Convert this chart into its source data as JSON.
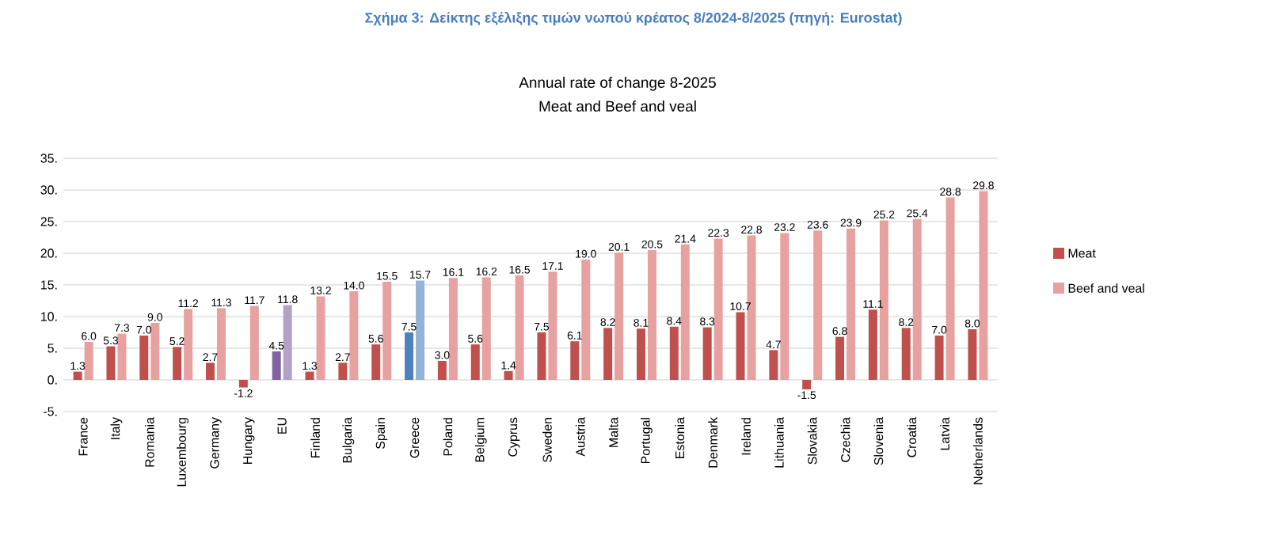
{
  "chart_data": {
    "type": "bar",
    "title": "Σχήμα 3: Δείκτης εξέλιξης τιμών νωπού κρέατος 8/2024-8/2025 (πηγή: Eurostat)",
    "subtitle": "Annual rate of change 8-2025",
    "annotations": [
      "Meat and Beef and veal"
    ],
    "categories": [
      "France",
      "Italy",
      "Romania",
      "Luxembourg",
      "Germany",
      "Hungary",
      "EU",
      "Finland",
      "Bulgaria",
      "Spain",
      "Greece",
      "Poland",
      "Belgium",
      "Cyprus",
      "Sweden",
      "Austria",
      "Malta",
      "Portugal",
      "Estonia",
      "Denmark",
      "Ireland",
      "Lithuania",
      "Slovakia",
      "Czechia",
      "Slovenia",
      "Croatia",
      "Latvia",
      "Netherlands"
    ],
    "series": [
      {
        "name": "Meat",
        "color": "#c0504d",
        "values": [
          1.3,
          5.3,
          7.0,
          5.2,
          2.7,
          -1.2,
          4.5,
          1.3,
          2.7,
          5.6,
          7.5,
          3.0,
          5.6,
          1.4,
          7.5,
          6.1,
          8.2,
          8.1,
          8.4,
          8.3,
          10.7,
          4.7,
          -1.5,
          6.8,
          11.1,
          8.2,
          7.0,
          8.0
        ],
        "colors": [
          "#c0504d",
          "#c0504d",
          "#c0504d",
          "#c0504d",
          "#c0504d",
          "#c0504d",
          "#8064a2",
          "#c0504d",
          "#c0504d",
          "#c0504d",
          "#4f81bd",
          "#c0504d",
          "#c0504d",
          "#c0504d",
          "#c0504d",
          "#c0504d",
          "#c0504d",
          "#c0504d",
          "#c0504d",
          "#c0504d",
          "#c0504d",
          "#c0504d",
          "#c0504d",
          "#c0504d",
          "#c0504d",
          "#c0504d",
          "#c0504d",
          "#c0504d"
        ],
        "value_labels": [
          "1.3",
          "5.3",
          "7.0",
          "5.2",
          "2.7",
          "-1.2",
          "4.5",
          "1.3",
          "2.7",
          "5.6",
          "7.5",
          "3.0",
          "5.6",
          "1.4",
          "7.5",
          "6.1",
          "8.2",
          "8.1",
          "8.4",
          "8.3",
          "10.7",
          "4.7",
          "-1.5",
          "6.8",
          "11.1",
          "8.2",
          "7.0",
          "8.0"
        ]
      },
      {
        "name": "Beef and veal",
        "color": "#e6a1a0",
        "values": [
          6.0,
          7.3,
          9.0,
          11.2,
          11.3,
          11.7,
          11.8,
          13.2,
          14.0,
          15.5,
          15.7,
          16.1,
          16.2,
          16.5,
          17.1,
          19.0,
          20.1,
          20.5,
          21.4,
          22.3,
          22.8,
          23.2,
          23.6,
          23.9,
          25.2,
          25.4,
          28.8,
          29.8
        ],
        "colors": [
          "#e6a1a0",
          "#e6a1a0",
          "#e6a1a0",
          "#e6a1a0",
          "#e6a1a0",
          "#e6a1a0",
          "#b3a2c7",
          "#e6a1a0",
          "#e6a1a0",
          "#e6a1a0",
          "#95b3d7",
          "#e6a1a0",
          "#e6a1a0",
          "#e6a1a0",
          "#e6a1a0",
          "#e6a1a0",
          "#e6a1a0",
          "#e6a1a0",
          "#e6a1a0",
          "#e6a1a0",
          "#e6a1a0",
          "#e6a1a0",
          "#e6a1a0",
          "#e6a1a0",
          "#e6a1a0",
          "#e6a1a0",
          "#e6a1a0",
          "#e6a1a0"
        ],
        "value_labels": [
          "6.0",
          "7.3",
          "9.0",
          "11.2",
          "11.3",
          "11.7",
          "11.8",
          "13.2",
          "14.0",
          "15.5",
          "15.7",
          "16.1",
          "16.2",
          "16.5",
          "17.1",
          "19.0",
          "20.1",
          "20.5",
          "21.4",
          "22.3",
          "22.8",
          "23.2",
          "23.6",
          "23.9",
          "25.2",
          "25.4",
          "28.8",
          "29.8"
        ]
      }
    ],
    "ylim": [
      -5,
      35
    ],
    "yticks": [
      {
        "value": -5,
        "label": "-5."
      },
      {
        "value": 0,
        "label": "0."
      },
      {
        "value": 5,
        "label": "5."
      },
      {
        "value": 10,
        "label": "10."
      },
      {
        "value": 15,
        "label": "15."
      },
      {
        "value": 20,
        "label": "20."
      },
      {
        "value": 25,
        "label": "25."
      },
      {
        "value": 30,
        "label": "30."
      },
      {
        "value": 35,
        "label": "35."
      }
    ],
    "grid": "y",
    "legend": "right"
  }
}
